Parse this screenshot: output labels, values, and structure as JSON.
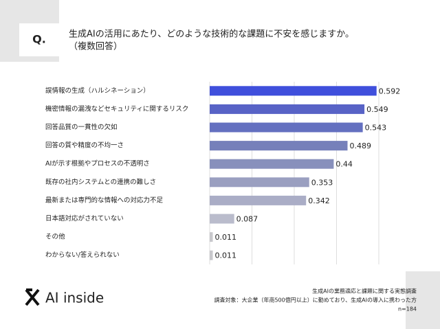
{
  "header": {
    "q": "Q.",
    "title": "生成AIの活用にあたり、どのような技術的な課題に不安を感じますか。",
    "subtitle": "（複数回答）"
  },
  "footer": {
    "logo": "AI inside",
    "lines": [
      "生成AIの業務適応と課題に関する実態調査",
      "調査対象：大企業（年商500億円以上）に勤めており、生成AIの導入に携わった方",
      "n=184"
    ]
  },
  "chart_data": {
    "type": "hbar",
    "categories": [
      "誤情報の生成（ハルシネーション）",
      "機密情報の漏洩などセキュリティに関するリスク",
      "回答品質の一貫性の欠如",
      "回答の質や精度の不均一さ",
      "AIが示す根拠やプロセスの不透明さ",
      "既存の社内システムとの連携の難しさ",
      "最新または専門的な情報への対応力不足",
      "日本語対応がされていない",
      "その他",
      "わからない/答えられない"
    ],
    "values": [
      0.592,
      0.549,
      0.543,
      0.489,
      0.44,
      0.353,
      0.342,
      0.087,
      0.011,
      0.011
    ],
    "colors": [
      "#3f4fdc",
      "#5863c6",
      "#6470c0",
      "#7680ba",
      "#8890bc",
      "#9a9fc0",
      "#aaadc6",
      "#babccc",
      "#c8c8cc",
      "#c8c8cc"
    ],
    "xlim": [
      0,
      0.6
    ],
    "xticks": [
      0,
      0.15,
      0.3,
      0.45,
      0.6
    ],
    "grid": true
  }
}
